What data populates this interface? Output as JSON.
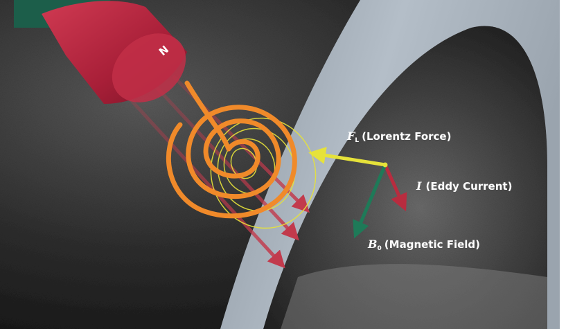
{
  "magnet": {
    "pole_label": "N",
    "body_color": "#b8243f",
    "cap_color": "#1c5e4a"
  },
  "labels": {
    "lorentz": {
      "symbol": "F",
      "subscript": "L",
      "text": "(Lorentz Force)"
    },
    "eddy": {
      "symbol": "I",
      "text": "(Eddy Current)"
    },
    "field": {
      "symbol": "B",
      "subscript": "0",
      "text": "(Magnetic Field)"
    }
  },
  "colors": {
    "coil": "#f08a2a",
    "lorentz_arrow": "#e6e23a",
    "eddy_arrow": "#b82c3f",
    "field_arrow": "#1e7a58",
    "field_lines": "#c23a4c",
    "ring_surface": "#a8b2bc"
  }
}
